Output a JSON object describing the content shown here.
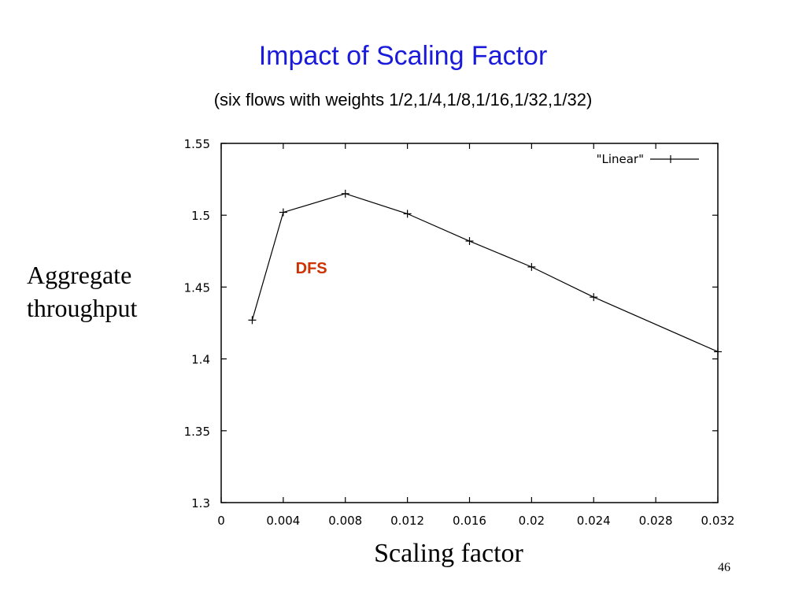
{
  "slide": {
    "title": "Impact of Scaling Factor",
    "subtitle": "(six flows with weights 1/2,1/4,1/8,1/16,1/32,1/32)",
    "page_number": "46"
  },
  "chart_data": {
    "type": "line",
    "title": "",
    "xlabel": "Scaling factor",
    "ylabel_lines": [
      "Aggregate",
      "throughput"
    ],
    "xlim": [
      0,
      0.032
    ],
    "ylim": [
      1.3,
      1.55
    ],
    "xticks": [
      "0",
      "0.004",
      "0.008",
      "0.012",
      "0.016",
      "0.02",
      "0.024",
      "0.028",
      "0.032"
    ],
    "yticks": [
      "1.3",
      "1.35",
      "1.4",
      "1.45",
      "1.5",
      "1.55"
    ],
    "grid": false,
    "legend_position": "top-right",
    "series": [
      {
        "name": "\"Linear\"",
        "marker": "plus",
        "color": "#000000",
        "x": [
          0.002,
          0.004,
          0.008,
          0.012,
          0.016,
          0.02,
          0.024,
          0.032
        ],
        "y": [
          1.427,
          1.502,
          1.515,
          1.501,
          1.482,
          1.464,
          1.443,
          1.405
        ]
      }
    ],
    "annotations": [
      {
        "text": "DFS",
        "x": 0.0048,
        "y": 1.464,
        "color": "#cc3300"
      }
    ]
  }
}
